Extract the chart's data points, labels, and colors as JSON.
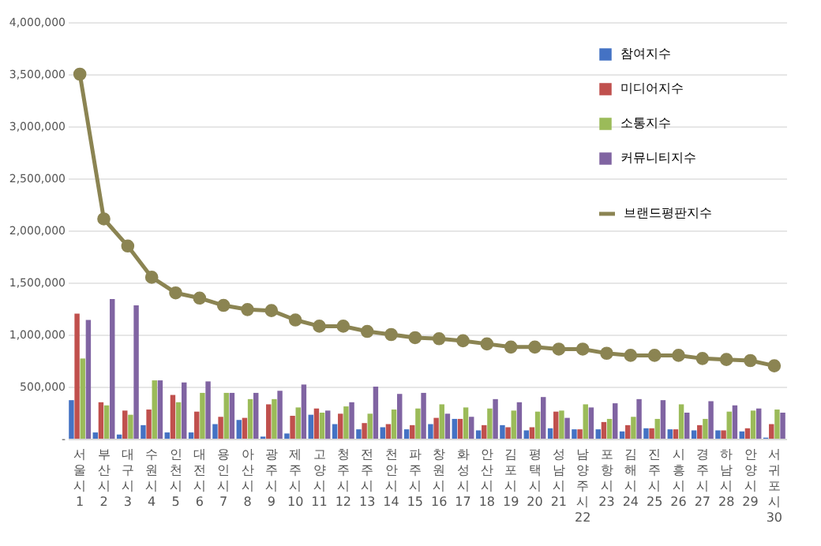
{
  "chart_data": {
    "type": "bar",
    "categories": [
      "서울시 1",
      "부산시 2",
      "대구시 3",
      "수원시 4",
      "인천시 5",
      "대전시 6",
      "용인시 7",
      "아산시 8",
      "광주시 9",
      "제주시 10",
      "고양시 11",
      "청주시 12",
      "전주시 13",
      "천안시 14",
      "파주시 15",
      "창원시 16",
      "화성시 17",
      "안산시 18",
      "김포시 19",
      "평택시 20",
      "성남시 21",
      "남양주시 22",
      "포항시 23",
      "김해시 24",
      "진주시 25",
      "시흥시 26",
      "경주시 27",
      "하남시 28",
      "안양시 29",
      "서귀포시 30"
    ],
    "series": [
      {
        "name": "참여지수",
        "color": "#4472c4",
        "values": [
          370000,
          60000,
          40000,
          130000,
          60000,
          60000,
          140000,
          180000,
          20000,
          50000,
          230000,
          140000,
          90000,
          110000,
          90000,
          140000,
          190000,
          80000,
          130000,
          80000,
          100000,
          90000,
          90000,
          70000,
          100000,
          90000,
          80000,
          80000,
          70000,
          10000
        ]
      },
      {
        "name": "미디어지수",
        "color": "#c0504d",
        "values": [
          1200000,
          350000,
          270000,
          280000,
          420000,
          260000,
          210000,
          200000,
          330000,
          220000,
          290000,
          240000,
          150000,
          140000,
          130000,
          200000,
          190000,
          130000,
          110000,
          110000,
          260000,
          90000,
          160000,
          130000,
          100000,
          90000,
          130000,
          80000,
          100000,
          140000
        ]
      },
      {
        "name": "소통지수",
        "color": "#9bbb59",
        "values": [
          770000,
          320000,
          230000,
          560000,
          350000,
          440000,
          440000,
          380000,
          380000,
          300000,
          250000,
          310000,
          240000,
          280000,
          290000,
          330000,
          300000,
          290000,
          270000,
          260000,
          270000,
          330000,
          190000,
          210000,
          190000,
          330000,
          190000,
          260000,
          270000,
          280000
        ]
      },
      {
        "name": "커뮤니티지수",
        "color": "#8064a2",
        "values": [
          1140000,
          1340000,
          1280000,
          560000,
          540000,
          550000,
          440000,
          440000,
          460000,
          520000,
          270000,
          350000,
          500000,
          430000,
          440000,
          240000,
          210000,
          380000,
          350000,
          400000,
          200000,
          300000,
          340000,
          380000,
          370000,
          250000,
          360000,
          320000,
          290000,
          250000
        ]
      },
      {
        "name": "브랜드평판지수",
        "type": "line",
        "color": "#8b8452",
        "marker": "circle",
        "line_style": "solid",
        "values": [
          3500000,
          2110000,
          1850000,
          1550000,
          1400000,
          1350000,
          1280000,
          1240000,
          1230000,
          1140000,
          1080000,
          1080000,
          1030000,
          1000000,
          970000,
          960000,
          940000,
          910000,
          880000,
          880000,
          860000,
          860000,
          820000,
          800000,
          800000,
          800000,
          770000,
          760000,
          750000,
          700000
        ]
      }
    ],
    "ylim": [
      0,
      4000000
    ],
    "yticks": [
      {
        "value": 0,
        "label": "-"
      },
      {
        "value": 500000,
        "label": "500,000"
      },
      {
        "value": 1000000,
        "label": "1,000,000"
      },
      {
        "value": 1500000,
        "label": "1,500,000"
      },
      {
        "value": 2000000,
        "label": "2,000,000"
      },
      {
        "value": 2500000,
        "label": "2,500,000"
      },
      {
        "value": 3000000,
        "label": "3,000,000"
      },
      {
        "value": 3500000,
        "label": "3,500,000"
      },
      {
        "value": 4000000,
        "label": "4,000,000"
      }
    ],
    "grid": "y",
    "legend": "top right"
  }
}
